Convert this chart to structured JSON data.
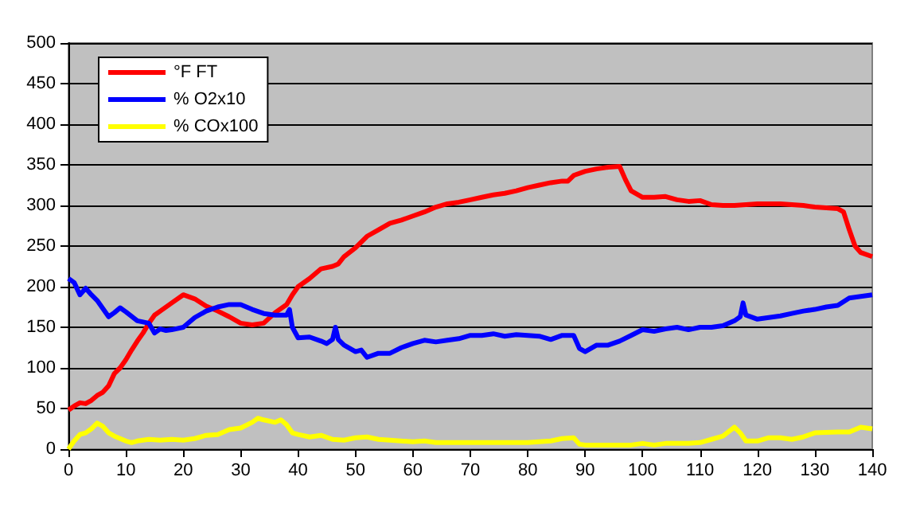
{
  "chart_data": {
    "type": "line",
    "xlim": [
      0,
      140
    ],
    "xticks": [
      0,
      10,
      20,
      30,
      40,
      50,
      60,
      70,
      80,
      90,
      100,
      110,
      120,
      130,
      140
    ],
    "ylim": [
      0,
      500
    ],
    "yticks": [
      0,
      50,
      100,
      150,
      200,
      250,
      300,
      350,
      400,
      450,
      500
    ],
    "grid": "y",
    "legend": "top left",
    "marker": "none",
    "series": [
      {
        "name": "°F FT",
        "color": "#ff0000",
        "x": [
          0,
          1,
          2,
          3,
          4,
          5,
          6,
          7,
          8,
          9,
          10,
          11,
          12,
          13,
          14,
          15,
          16,
          18,
          20,
          22,
          24,
          26,
          28,
          30,
          32,
          34,
          36,
          38,
          39,
          40,
          42,
          44,
          46,
          47,
          48,
          50,
          52,
          54,
          56,
          58,
          60,
          62,
          64,
          66,
          68,
          70,
          72,
          74,
          76,
          78,
          80,
          82,
          84,
          86,
          87,
          88,
          90,
          92,
          94,
          96,
          97,
          98,
          100,
          102,
          104,
          106,
          108,
          110,
          112,
          114,
          116,
          118,
          120,
          124,
          128,
          130,
          134,
          135,
          136,
          137,
          138,
          140
        ],
        "values": [
          48,
          53,
          57,
          56,
          60,
          66,
          70,
          78,
          93,
          100,
          110,
          122,
          133,
          143,
          155,
          165,
          170,
          180,
          190,
          185,
          176,
          170,
          163,
          155,
          153,
          155,
          168,
          178,
          190,
          200,
          210,
          222,
          225,
          228,
          237,
          248,
          262,
          270,
          278,
          282,
          287,
          292,
          298,
          302,
          304,
          307,
          310,
          313,
          315,
          318,
          322,
          325,
          328,
          330,
          330,
          337,
          342,
          345,
          347,
          348,
          332,
          318,
          310,
          310,
          311,
          307,
          305,
          306,
          301,
          300,
          300,
          301,
          302,
          302,
          300,
          298,
          296,
          292,
          270,
          250,
          242,
          237
        ]
      },
      {
        "name": "% O2x10",
        "color": "#0000ff",
        "x": [
          0,
          1,
          2,
          3,
          4,
          5,
          6,
          7,
          8,
          9,
          10,
          12,
          14,
          15,
          16,
          17,
          18,
          20,
          22,
          24,
          26,
          28,
          30,
          32,
          34,
          36,
          38,
          38.5,
          39,
          40,
          42,
          44,
          45,
          46,
          46.5,
          47,
          48,
          50,
          51,
          52,
          54,
          56,
          58,
          60,
          62,
          64,
          66,
          68,
          70,
          72,
          74,
          76,
          78,
          80,
          82,
          84,
          86,
          88,
          89,
          90,
          92,
          94,
          96,
          98,
          100,
          102,
          104,
          106,
          108,
          110,
          112,
          114,
          116,
          117,
          117.5,
          118,
          120,
          122,
          124,
          126,
          128,
          130,
          132,
          134,
          136,
          138,
          140
        ],
        "values": [
          210,
          205,
          190,
          198,
          190,
          183,
          173,
          163,
          168,
          174,
          169,
          158,
          155,
          143,
          148,
          146,
          147,
          150,
          162,
          170,
          175,
          178,
          178,
          172,
          167,
          165,
          165,
          172,
          150,
          137,
          138,
          133,
          130,
          135,
          150,
          135,
          128,
          120,
          122,
          113,
          118,
          118,
          125,
          130,
          134,
          132,
          134,
          136,
          140,
          140,
          142,
          139,
          141,
          140,
          139,
          135,
          140,
          140,
          124,
          120,
          128,
          128,
          133,
          140,
          147,
          145,
          148,
          150,
          147,
          150,
          150,
          152,
          158,
          163,
          180,
          165,
          160,
          162,
          164,
          167,
          170,
          172,
          175,
          177,
          186,
          188,
          190
        ]
      },
      {
        "name": "% COx100",
        "color": "#ffff00",
        "x": [
          0,
          1,
          2,
          3,
          4,
          5,
          6,
          7,
          8,
          10,
          11,
          12,
          14,
          16,
          18,
          20,
          22,
          24,
          26,
          28,
          30,
          32,
          33,
          34,
          36,
          37,
          38,
          39,
          40,
          42,
          44,
          46,
          48,
          50,
          52,
          54,
          56,
          60,
          62,
          64,
          70,
          80,
          84,
          86,
          88,
          89,
          90,
          98,
          100,
          102,
          104,
          108,
          110,
          112,
          114,
          116,
          117,
          118,
          120,
          122,
          124,
          126,
          128,
          130,
          134,
          136,
          138,
          140
        ],
        "values": [
          0,
          10,
          18,
          20,
          25,
          32,
          28,
          20,
          16,
          10,
          8,
          10,
          12,
          11,
          12,
          11,
          13,
          17,
          18,
          24,
          26,
          33,
          38,
          36,
          33,
          36,
          30,
          20,
          18,
          15,
          17,
          12,
          11,
          14,
          15,
          12,
          11,
          9,
          10,
          8,
          8,
          8,
          10,
          13,
          14,
          6,
          5,
          5,
          7,
          5,
          7,
          7,
          8,
          12,
          16,
          27,
          20,
          10,
          10,
          14,
          14,
          12,
          15,
          20,
          21,
          21,
          27,
          25
        ]
      }
    ]
  }
}
